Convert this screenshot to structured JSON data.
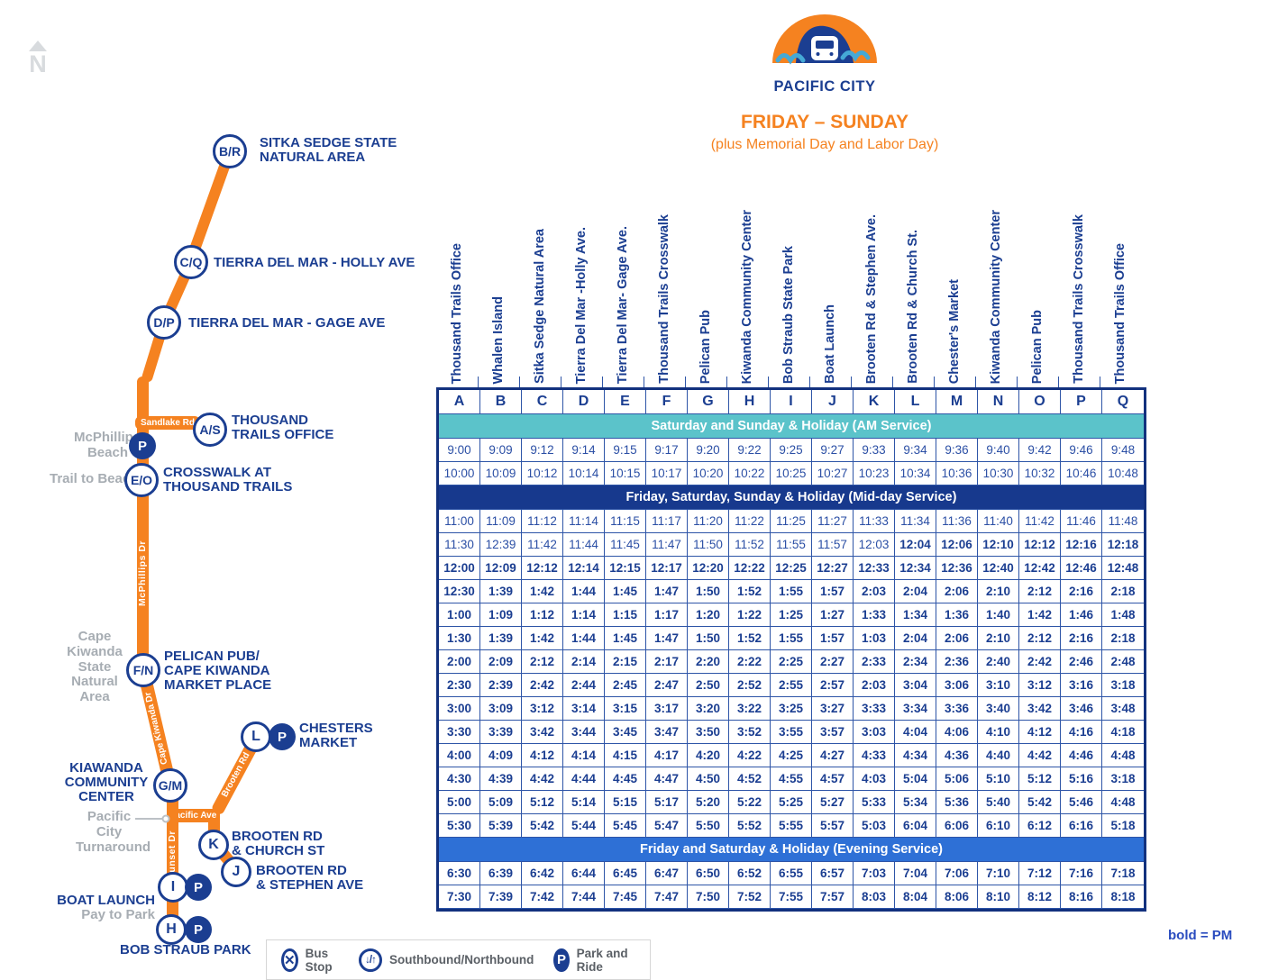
{
  "compass": {
    "letter": "N"
  },
  "logo": {
    "name": "PACIFIC CITY"
  },
  "title": {
    "main": "FRIDAY – SUNDAY",
    "sub": "(plus Memorial Day and Labor Day)"
  },
  "note": "bold = PM",
  "legend": {
    "bus_stop_glyph": "✕",
    "bus_stop": "Bus Stop",
    "direction_glyph": "↓/↑",
    "direction": "Southbound/Northbound",
    "park_letter": "P",
    "park_and_ride": "Park and Ride"
  },
  "map": {
    "park_letter": "P",
    "roads": {
      "sandlake": "Sandlake Rd",
      "mcphillips_dr": "McPhillips Dr",
      "cape_kiwanda_dr": "Cape Kiwanda Dr",
      "brooten_rd": "Brooten Rd",
      "pacific_ave": "Pacific Ave",
      "sunset_dr": "Sunset Dr"
    },
    "gray": {
      "mcphillips_beach": "McPhillips\nBeach",
      "trail_to_beach": "Trail to Beach",
      "cape_kiwanda": "Cape\nKiwanda\nState\nNatural\nArea",
      "turnaround": "Pacific City\nTurnaround"
    },
    "stops": [
      {
        "code": "B/R",
        "label": "SITKA SEDGE STATE\nNATURAL AREA"
      },
      {
        "code": "C/Q",
        "label": "TIERRA DEL MAR - HOLLY AVE"
      },
      {
        "code": "D/P",
        "label": "TIERRA DEL MAR - GAGE AVE"
      },
      {
        "code": "A/S",
        "label": "THOUSAND\nTRAILS OFFICE"
      },
      {
        "code": "E/O",
        "label": "CROSSWALK AT\nTHOUSAND TRAILS"
      },
      {
        "code": "F/N",
        "label": "PELICAN PUB/\nCAPE KIWANDA\nMARKET PLACE"
      },
      {
        "code": "L",
        "label": "CHESTERS\nMARKET"
      },
      {
        "code": "G/M",
        "label": "KIAWANDA\nCOMMUNITY\nCENTER"
      },
      {
        "code": "K",
        "label": "BROOTEN RD\n& CHURCH ST"
      },
      {
        "code": "J",
        "label": "BROOTEN RD\n& STEPHEN AVE"
      },
      {
        "code": "I",
        "label": "BOAT LAUNCH",
        "sub": "Pay to Park"
      },
      {
        "code": "H",
        "label": "BOB STRAUB PARK"
      }
    ]
  },
  "schedule": {
    "columns": [
      {
        "letter": "A",
        "stop": "Thousand Trails Office"
      },
      {
        "letter": "B",
        "stop": "Whalen Island"
      },
      {
        "letter": "C",
        "stop": "Sitka Sedge Natural Area"
      },
      {
        "letter": "D",
        "stop": "Tierra Del Mar -Holly Ave."
      },
      {
        "letter": "E",
        "stop": "Tierra Del Mar- Gage Ave."
      },
      {
        "letter": "F",
        "stop": "Thousand Trails Crosswalk"
      },
      {
        "letter": "G",
        "stop": "Pelican Pub"
      },
      {
        "letter": "H",
        "stop": "Kiwanda Community Center"
      },
      {
        "letter": "I",
        "stop": "Bob Straub State Park"
      },
      {
        "letter": "J",
        "stop": "Boat Launch"
      },
      {
        "letter": "K",
        "stop": "Brooten Rd & Stephen Ave."
      },
      {
        "letter": "L",
        "stop": "Brooten Rd & Church St."
      },
      {
        "letter": "M",
        "stop": "Chester's Market"
      },
      {
        "letter": "N",
        "stop": "Kiwanda Community Center"
      },
      {
        "letter": "O",
        "stop": "Pelican Pub"
      },
      {
        "letter": "P",
        "stop": "Thousand Trails Crosswalk"
      },
      {
        "letter": "Q",
        "stop": "Thousand Trails Office"
      }
    ],
    "sections": [
      {
        "title": "Saturday and Sunday & Holiday (AM Service)",
        "color": "#5bc3ca",
        "rows": [
          {
            "bold_from": -1,
            "times": [
              "9:00",
              "9:09",
              "9:12",
              "9:14",
              "9:15",
              "9:17",
              "9:20",
              "9:22",
              "9:25",
              "9:27",
              "9:33",
              "9:34",
              "9:36",
              "9:40",
              "9:42",
              "9:46",
              "9:48"
            ]
          },
          {
            "bold_from": -1,
            "times": [
              "10:00",
              "10:09",
              "10:12",
              "10:14",
              "10:15",
              "10:17",
              "10:20",
              "10:22",
              "10:25",
              "10:27",
              "10:23",
              "10:34",
              "10:36",
              "10:30",
              "10:32",
              "10:46",
              "10:48"
            ]
          }
        ]
      },
      {
        "title": "Friday, Saturday, Sunday & Holiday (Mid-day Service)",
        "color": "#17398d",
        "rows": [
          {
            "bold_from": -1,
            "times": [
              "11:00",
              "11:09",
              "11:12",
              "11:14",
              "11:15",
              "11:17",
              "11:20",
              "11:22",
              "11:25",
              "11:27",
              "11:33",
              "11:34",
              "11:36",
              "11:40",
              "11:42",
              "11:46",
              "11:48"
            ]
          },
          {
            "bold_from": 11,
            "times": [
              "11:30",
              "12:39",
              "11:42",
              "11:44",
              "11:45",
              "11:47",
              "11:50",
              "11:52",
              "11:55",
              "11:57",
              "12:03",
              "12:04",
              "12:06",
              "12:10",
              "12:12",
              "12:16",
              "12:18"
            ]
          },
          {
            "bold_from": 0,
            "times": [
              "12:00",
              "12:09",
              "12:12",
              "12:14",
              "12:15",
              "12:17",
              "12:20",
              "12:22",
              "12:25",
              "12:27",
              "12:33",
              "12:34",
              "12:36",
              "12:40",
              "12:42",
              "12:46",
              "12:48"
            ]
          },
          {
            "bold_from": 0,
            "times": [
              "12:30",
              "1:39",
              "1:42",
              "1:44",
              "1:45",
              "1:47",
              "1:50",
              "1:52",
              "1:55",
              "1:57",
              "2:03",
              "2:04",
              "2:06",
              "2:10",
              "2:12",
              "2:16",
              "2:18"
            ]
          },
          {
            "bold_from": 0,
            "times": [
              "1:00",
              "1:09",
              "1:12",
              "1:14",
              "1:15",
              "1:17",
              "1:20",
              "1:22",
              "1:25",
              "1:27",
              "1:33",
              "1:34",
              "1:36",
              "1:40",
              "1:42",
              "1:46",
              "1:48"
            ]
          },
          {
            "bold_from": 0,
            "times": [
              "1:30",
              "1:39",
              "1:42",
              "1:44",
              "1:45",
              "1:47",
              "1:50",
              "1:52",
              "1:55",
              "1:57",
              "1:03",
              "2:04",
              "2:06",
              "2:10",
              "2:12",
              "2:16",
              "2:18"
            ]
          },
          {
            "bold_from": 0,
            "times": [
              "2:00",
              "2:09",
              "2:12",
              "2:14",
              "2:15",
              "2:17",
              "2:20",
              "2:22",
              "2:25",
              "2:27",
              "2:33",
              "2:34",
              "2:36",
              "2:40",
              "2:42",
              "2:46",
              "2:48"
            ]
          },
          {
            "bold_from": 0,
            "times": [
              "2:30",
              "2:39",
              "2:42",
              "2:44",
              "2:45",
              "2:47",
              "2:50",
              "2:52",
              "2:55",
              "2:57",
              "2:03",
              "3:04",
              "3:06",
              "3:10",
              "3:12",
              "3:16",
              "3:18"
            ]
          },
          {
            "bold_from": 0,
            "times": [
              "3:00",
              "3:09",
              "3:12",
              "3:14",
              "3:15",
              "3:17",
              "3:20",
              "3:22",
              "3:25",
              "3:27",
              "3:33",
              "3:34",
              "3:36",
              "3:40",
              "3:42",
              "3:46",
              "3:48"
            ]
          },
          {
            "bold_from": 0,
            "times": [
              "3:30",
              "3:39",
              "3:42",
              "3:44",
              "3:45",
              "3:47",
              "3:50",
              "3:52",
              "3:55",
              "3:57",
              "3:03",
              "4:04",
              "4:06",
              "4:10",
              "4:12",
              "4:16",
              "4:18"
            ]
          },
          {
            "bold_from": 0,
            "times": [
              "4:00",
              "4:09",
              "4:12",
              "4:14",
              "4:15",
              "4:17",
              "4:20",
              "4:22",
              "4:25",
              "4:27",
              "4:33",
              "4:34",
              "4:36",
              "4:40",
              "4:42",
              "4:46",
              "4:48"
            ]
          },
          {
            "bold_from": 0,
            "times": [
              "4:30",
              "4:39",
              "4:42",
              "4:44",
              "4:45",
              "4:47",
              "4:50",
              "4:52",
              "4:55",
              "4:57",
              "4:03",
              "5:04",
              "5:06",
              "5:10",
              "5:12",
              "5:16",
              "3:18"
            ]
          },
          {
            "bold_from": 0,
            "times": [
              "5:00",
              "5:09",
              "5:12",
              "5:14",
              "5:15",
              "5:17",
              "5:20",
              "5:22",
              "5:25",
              "5:27",
              "5:33",
              "5:34",
              "5:36",
              "5:40",
              "5:42",
              "5:46",
              "4:48"
            ]
          },
          {
            "bold_from": 0,
            "times": [
              "5:30",
              "5:39",
              "5:42",
              "5:44",
              "5:45",
              "5:47",
              "5:50",
              "5:52",
              "5:55",
              "5:57",
              "5:03",
              "6:04",
              "6:06",
              "6:10",
              "6:12",
              "6:16",
              "5:18"
            ]
          }
        ]
      },
      {
        "title": "Friday and Saturday & Holiday (Evening Service)",
        "color": "#2e70d6",
        "rows": [
          {
            "bold_from": 0,
            "times": [
              "6:30",
              "6:39",
              "6:42",
              "6:44",
              "6:45",
              "6:47",
              "6:50",
              "6:52",
              "6:55",
              "6:57",
              "7:03",
              "7:04",
              "7:06",
              "7:10",
              "7:12",
              "7:16",
              "7:18"
            ]
          },
          {
            "bold_from": 0,
            "times": [
              "7:30",
              "7:39",
              "7:42",
              "7:44",
              "7:45",
              "7:47",
              "7:50",
              "7:52",
              "7:55",
              "7:57",
              "8:03",
              "8:04",
              "8:06",
              "8:10",
              "8:12",
              "8:16",
              "8:18"
            ]
          }
        ]
      }
    ]
  }
}
